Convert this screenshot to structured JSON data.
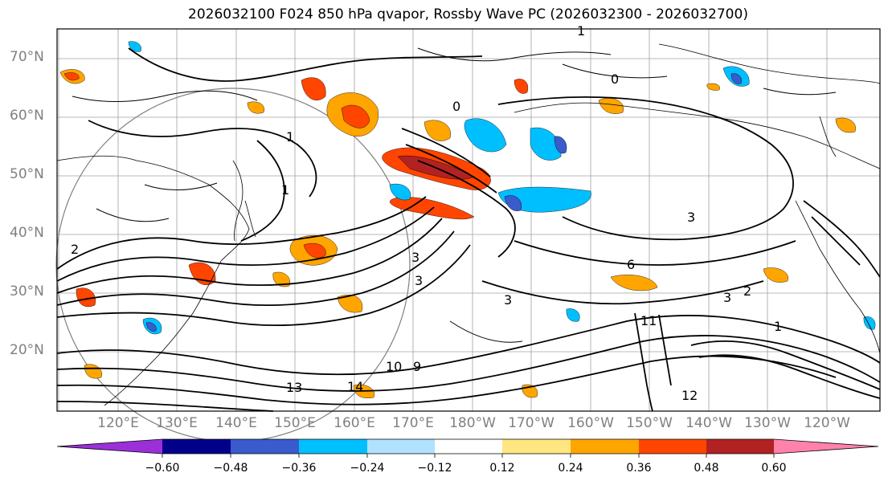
{
  "title": "2026032100 F024 850 hPa qvapor, Rossby Wave PC (2026032300 - 2026032700)",
  "lat_labels": [
    "70°N",
    "60°N",
    "50°N",
    "40°N",
    "30°N",
    "20°N"
  ],
  "lon_labels": [
    "120°E",
    "130°E",
    "140°E",
    "150°E",
    "160°E",
    "170°E",
    "180°W",
    "170°W",
    "160°W",
    "150°W",
    "140°W",
    "130°W",
    "120°W"
  ],
  "contour_labels": [
    "1",
    "0",
    "0",
    "1",
    "3",
    "1",
    "3",
    "2",
    "3",
    "6",
    "9",
    "11",
    "10",
    "12",
    "13",
    "14",
    "1",
    "3",
    "3",
    "2"
  ],
  "colorbar": {
    "ticks": [
      "−0.60",
      "−0.48",
      "−0.36",
      "−0.24",
      "−0.12",
      "0.12",
      "0.24",
      "0.36",
      "0.48",
      "0.60"
    ],
    "colors": [
      "#9b30d9",
      "#00008b",
      "#3a5bcc",
      "#00bfff",
      "#b0e2ff",
      "#ffffff",
      "#ffe680",
      "#ffa500",
      "#ff4500",
      "#b22222",
      "#ff82ab"
    ]
  },
  "colors": {
    "contour": "#000000",
    "coast": "#000000",
    "grid": "#a0a0a0",
    "circle": "#808080",
    "label_gray": "#808080"
  }
}
